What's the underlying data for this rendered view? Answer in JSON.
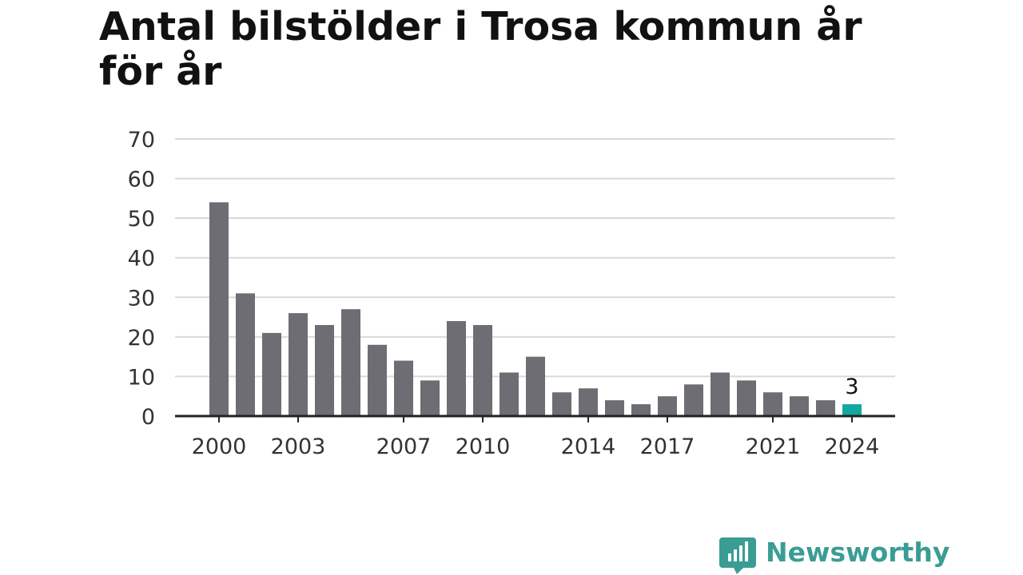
{
  "chart_data": {
    "type": "bar",
    "title": "Antal bilstölder i Trosa kommun år för år",
    "xlabel": "",
    "ylabel": "",
    "x": [
      2000,
      2001,
      2002,
      2003,
      2004,
      2005,
      2006,
      2007,
      2008,
      2009,
      2010,
      2011,
      2012,
      2013,
      2014,
      2015,
      2016,
      2017,
      2018,
      2019,
      2020,
      2021,
      2022,
      2023,
      2024
    ],
    "values": [
      54,
      31,
      21,
      26,
      23,
      27,
      18,
      14,
      9,
      24,
      23,
      11,
      15,
      6,
      7,
      4,
      3,
      5,
      8,
      11,
      9,
      6,
      5,
      4,
      3
    ],
    "x_ticks": [
      "2000",
      "2003",
      "2007",
      "2010",
      "2014",
      "2017",
      "2021",
      "2024"
    ],
    "y_ticks": [
      "0",
      "10",
      "20",
      "30",
      "40",
      "50",
      "60",
      "70"
    ],
    "ylim": [
      0,
      70
    ],
    "grid": true,
    "annotations": [
      {
        "x": 2024,
        "label": "3"
      }
    ],
    "colors": {
      "bar": "#6e6d73",
      "highlight": "#13a89e",
      "grid": "#d9d9d9",
      "axis": "#222222"
    }
  },
  "brand": {
    "name": "Newsworthy",
    "color": "#3a9d94",
    "icon": "newsworthy-logo-icon"
  }
}
